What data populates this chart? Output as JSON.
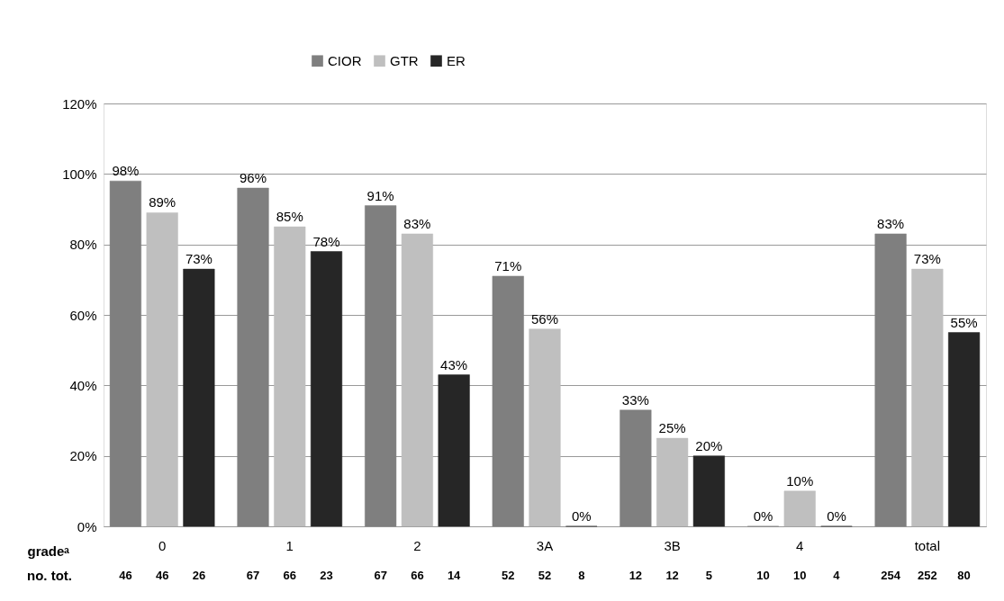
{
  "chart_data": {
    "type": "bar",
    "xlabel": "gradeᵃ",
    "categories": [
      "0",
      "1",
      "2",
      "3A",
      "3B",
      "4",
      "total"
    ],
    "series": [
      {
        "name": "CIOR",
        "color": "#7f7f7f",
        "values": [
          98,
          96,
          91,
          71,
          33,
          0,
          83
        ],
        "value_labels": [
          "98%",
          "96%",
          "91%",
          "71%",
          "33%",
          "0%",
          "83%"
        ]
      },
      {
        "name": "GTR",
        "color": "#bfbfbf",
        "values": [
          89,
          85,
          83,
          56,
          25,
          10,
          73
        ],
        "value_labels": [
          "89%",
          "85%",
          "83%",
          "56%",
          "25%",
          "10%",
          "73%"
        ]
      },
      {
        "name": "ER",
        "color": "#262626",
        "values": [
          73,
          78,
          43,
          0,
          20,
          0,
          55
        ],
        "value_labels": [
          "73%",
          "78%",
          "43%",
          "0%",
          "20%",
          "0%",
          "55%"
        ]
      }
    ],
    "ylim": [
      0,
      120
    ],
    "yticks": [
      {
        "value": 0,
        "label": "0%"
      },
      {
        "value": 20,
        "label": "20%"
      },
      {
        "value": 40,
        "label": "40%"
      },
      {
        "value": 60,
        "label": "60%"
      },
      {
        "value": 80,
        "label": "80%"
      },
      {
        "value": 100,
        "label": "100%"
      },
      {
        "value": 120,
        "label": "120%"
      }
    ],
    "grid": "y",
    "legend": "top",
    "annotations": [
      "no. tot.",
      "46",
      "46",
      "26",
      "67",
      "66",
      "23",
      "67",
      "66",
      "14",
      "52",
      "52",
      "8",
      "12",
      "12",
      "5",
      "10",
      "10",
      "4",
      "254",
      "252",
      "80"
    ]
  }
}
